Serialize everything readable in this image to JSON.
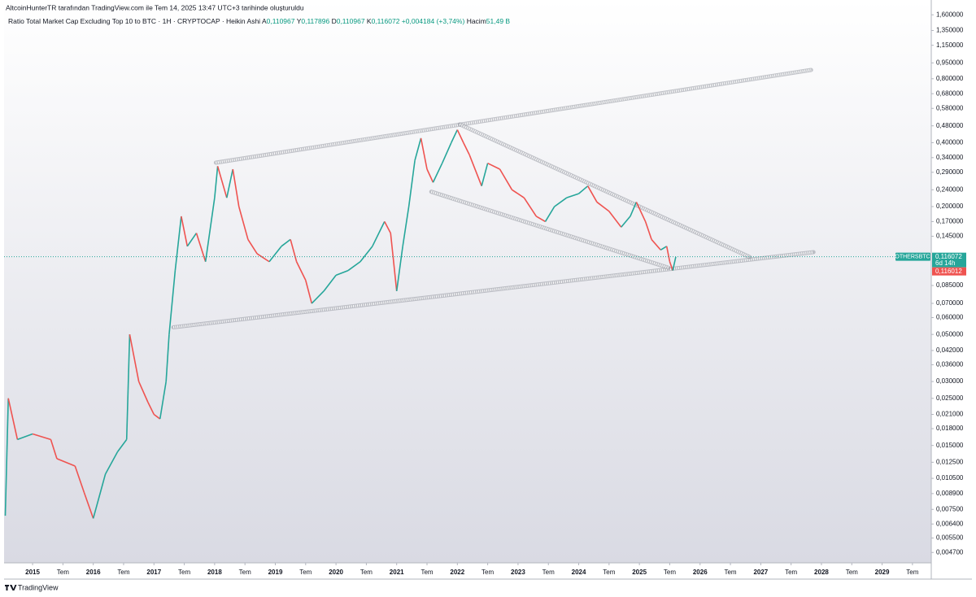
{
  "header": {
    "credit": "AltcoinHunterTR tarafından TradingView.com ile Tem 14, 2025 13:47 UTC+3 tarihinde oluşturuldu"
  },
  "legend": {
    "title": "Ratio Total Market Cap Excluding Top 10 to BTC · 1H · CRYPTOCAP · Heikin Ashi",
    "open_label": "A",
    "open": "0,110967",
    "high_label": "Y",
    "high": "0,117896",
    "low_label": "D",
    "low": "0,110967",
    "close_label": "K",
    "close": "0,116072",
    "change": "+0,004184 (+3,74%)",
    "volume_label": "Hacim",
    "volume": "51,49 B"
  },
  "footer": {
    "brand": "TradingView"
  },
  "chart_data": {
    "type": "line",
    "log_scale": true,
    "up_color": "#26a69a",
    "down_color": "#ef5350",
    "xlim": [
      2014.53,
      2029.81
    ],
    "ylim": [
      0.0042,
      1.69
    ],
    "xticks": [
      {
        "value": 2015,
        "label": "2015"
      },
      {
        "value": 2015.5,
        "label": "Tem"
      },
      {
        "value": 2016,
        "label": "2016"
      },
      {
        "value": 2016.5,
        "label": "Tem"
      },
      {
        "value": 2017,
        "label": "2017"
      },
      {
        "value": 2017.5,
        "label": "Tem"
      },
      {
        "value": 2018,
        "label": "2018"
      },
      {
        "value": 2018.5,
        "label": "Tem"
      },
      {
        "value": 2019,
        "label": "2019"
      },
      {
        "value": 2019.5,
        "label": "Tem"
      },
      {
        "value": 2020,
        "label": "2020"
      },
      {
        "value": 2020.5,
        "label": "Tem"
      },
      {
        "value": 2021,
        "label": "2021"
      },
      {
        "value": 2021.5,
        "label": "Tem"
      },
      {
        "value": 2022,
        "label": "2022"
      },
      {
        "value": 2022.5,
        "label": "Tem"
      },
      {
        "value": 2023,
        "label": "2023"
      },
      {
        "value": 2023.5,
        "label": "Tem"
      },
      {
        "value": 2024,
        "label": "2024"
      },
      {
        "value": 2024.5,
        "label": "Tem"
      },
      {
        "value": 2025,
        "label": "2025"
      },
      {
        "value": 2025.5,
        "label": "Tem"
      },
      {
        "value": 2026,
        "label": "2026"
      },
      {
        "value": 2026.5,
        "label": "Tem"
      },
      {
        "value": 2027,
        "label": "2027"
      },
      {
        "value": 2027.5,
        "label": "Tem"
      },
      {
        "value": 2028,
        "label": "2028"
      },
      {
        "value": 2028.5,
        "label": "Tem"
      },
      {
        "value": 2029,
        "label": "2029"
      },
      {
        "value": 2029.5,
        "label": "Tem"
      }
    ],
    "yticks": [
      {
        "value": 1.6,
        "label": "1,600000"
      },
      {
        "value": 1.35,
        "label": "1,350000"
      },
      {
        "value": 1.15,
        "label": "1,150000"
      },
      {
        "value": 0.95,
        "label": "0,950000"
      },
      {
        "value": 0.8,
        "label": "0,800000"
      },
      {
        "value": 0.68,
        "label": "0,680000"
      },
      {
        "value": 0.58,
        "label": "0,580000"
      },
      {
        "value": 0.48,
        "label": "0,480000"
      },
      {
        "value": 0.4,
        "label": "0,400000"
      },
      {
        "value": 0.34,
        "label": "0,340000"
      },
      {
        "value": 0.29,
        "label": "0,290000"
      },
      {
        "value": 0.24,
        "label": "0,240000"
      },
      {
        "value": 0.2,
        "label": "0,200000"
      },
      {
        "value": 0.17,
        "label": "0,170000"
      },
      {
        "value": 0.145,
        "label": "0,145000"
      },
      {
        "value": 0.085,
        "label": "0,085000"
      },
      {
        "value": 0.07,
        "label": "0,070000"
      },
      {
        "value": 0.06,
        "label": "0,060000"
      },
      {
        "value": 0.05,
        "label": "0,050000"
      },
      {
        "value": 0.042,
        "label": "0,042000"
      },
      {
        "value": 0.036,
        "label": "0,036000"
      },
      {
        "value": 0.03,
        "label": "0,030000"
      },
      {
        "value": 0.025,
        "label": "0,025000"
      },
      {
        "value": 0.021,
        "label": "0,021000"
      },
      {
        "value": 0.018,
        "label": "0,018000"
      },
      {
        "value": 0.015,
        "label": "0,015000"
      },
      {
        "value": 0.0125,
        "label": "0,012500"
      },
      {
        "value": 0.0105,
        "label": "0,010500"
      },
      {
        "value": 0.0089,
        "label": "0,008900"
      },
      {
        "value": 0.0075,
        "label": "0,007500"
      },
      {
        "value": 0.0064,
        "label": "0,006400"
      },
      {
        "value": 0.0055,
        "label": "0,005500"
      },
      {
        "value": 0.0047,
        "label": "0,004700"
      }
    ],
    "x": [
      2014.55,
      2014.6,
      2014.75,
      2015.0,
      2015.3,
      2015.4,
      2015.7,
      2015.85,
      2016.0,
      2016.2,
      2016.4,
      2016.55,
      2016.6,
      2016.75,
      2016.9,
      2017.0,
      2017.1,
      2017.2,
      2017.25,
      2017.35,
      2017.45,
      2017.55,
      2017.7,
      2017.85,
      2018.0,
      2018.05,
      2018.2,
      2018.3,
      2018.4,
      2018.55,
      2018.7,
      2018.9,
      2019.1,
      2019.25,
      2019.35,
      2019.5,
      2019.6,
      2019.8,
      2020.0,
      2020.2,
      2020.4,
      2020.6,
      2020.8,
      2020.9,
      2021.0,
      2021.1,
      2021.2,
      2021.3,
      2021.4,
      2021.5,
      2021.6,
      2021.75,
      2021.9,
      2022.0,
      2022.1,
      2022.2,
      2022.4,
      2022.5,
      2022.7,
      2022.9,
      2023.1,
      2023.3,
      2023.45,
      2023.6,
      2023.8,
      2024.0,
      2024.15,
      2024.3,
      2024.5,
      2024.7,
      2024.85,
      2024.95,
      2025.1,
      2025.2,
      2025.35,
      2025.45,
      2025.5,
      2025.55,
      2025.6
    ],
    "series": [
      {
        "name": "OTHERSBTC",
        "values": [
          0.007,
          0.025,
          0.016,
          0.017,
          0.016,
          0.013,
          0.012,
          0.009,
          0.0068,
          0.011,
          0.014,
          0.016,
          0.05,
          0.03,
          0.024,
          0.021,
          0.02,
          0.03,
          0.05,
          0.1,
          0.18,
          0.13,
          0.15,
          0.11,
          0.22,
          0.31,
          0.22,
          0.3,
          0.2,
          0.14,
          0.12,
          0.11,
          0.13,
          0.14,
          0.11,
          0.09,
          0.07,
          0.08,
          0.095,
          0.1,
          0.11,
          0.13,
          0.17,
          0.15,
          0.08,
          0.13,
          0.2,
          0.33,
          0.42,
          0.3,
          0.26,
          0.32,
          0.4,
          0.46,
          0.4,
          0.35,
          0.25,
          0.32,
          0.3,
          0.24,
          0.22,
          0.18,
          0.17,
          0.2,
          0.22,
          0.23,
          0.25,
          0.21,
          0.19,
          0.16,
          0.18,
          0.21,
          0.17,
          0.14,
          0.125,
          0.13,
          0.11,
          0.1,
          0.116
        ]
      }
    ],
    "trendlines": [
      {
        "x": [
          2018.02,
          2027.83
        ],
        "y": [
          0.322,
          0.88
        ]
      },
      {
        "x": [
          2017.32,
          2027.87
        ],
        "y": [
          0.054,
          0.122
        ]
      },
      {
        "x": [
          2022.04,
          2026.82
        ],
        "y": [
          0.488,
          0.1156
        ]
      },
      {
        "x": [
          2021.57,
          2025.48
        ],
        "y": [
          0.235,
          0.103
        ]
      }
    ],
    "last_price": 0.116072,
    "last_price_label": "0,116072",
    "countdown": "6d 14h",
    "bid_label": "0,116012"
  }
}
